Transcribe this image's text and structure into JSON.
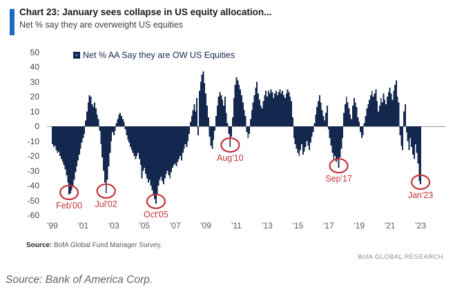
{
  "header": {
    "title": "Chart 23: January sees collapse in US equity allocation...",
    "subtitle": "Net % say they are overweight US equities"
  },
  "legend": {
    "label": "Net % AA Say they are OW US Equities"
  },
  "footer": {
    "source_label": "Source:",
    "source_text": " BofA Global Fund Manager Survey.",
    "brand": "BofA GLOBAL RESEARCH"
  },
  "caption": "Source: Bank of America Corp.",
  "colors": {
    "accent_blue": "#1e6bc2",
    "bar_navy": "#14274e",
    "legend_marker_inner": "#4a7ebb",
    "annotation_red": "#c4313b",
    "zero_line_gray": "#999999",
    "ytick_text": "#404040",
    "xtick_text": "#595959"
  },
  "chart_data": {
    "type": "bar",
    "title": "Net % AA Say they are OW US Equities",
    "xlabel": "",
    "ylabel": "Net % say they are overweight US equities",
    "x_start": "Jan 1999",
    "x_end": "Jan 2023",
    "x_frequency": "monthly",
    "ylim": [
      -60,
      50
    ],
    "grid": false,
    "legend_position": "top-left",
    "yticks": [
      "50",
      "40",
      "30",
      "20",
      "10",
      "0",
      "-10",
      "-20",
      "-30",
      "-40",
      "-50",
      "-60"
    ],
    "ytick_values": [
      50,
      40,
      30,
      20,
      10,
      0,
      -10,
      -20,
      -30,
      -40,
      -50,
      -60
    ],
    "xticks": [
      "'99",
      "'01",
      "'03",
      "'05",
      "'07",
      "'09",
      "'11",
      "'13",
      "'15",
      "'17",
      "'19",
      "'21",
      "'23"
    ],
    "values": [
      -12,
      -14,
      -13,
      -16,
      -18,
      -17,
      -20,
      -22,
      -24,
      -26,
      -29,
      -33,
      -38,
      -46,
      -45,
      -43,
      -40,
      -36,
      -31,
      -27,
      -23,
      -19,
      -15,
      -11,
      -8,
      -5,
      4,
      10,
      16,
      21,
      20,
      15,
      13,
      16,
      12,
      8,
      5,
      -3,
      -12,
      -21,
      -30,
      -38,
      -45,
      -36,
      -27,
      -18,
      -10,
      -4,
      -6,
      -3,
      2,
      5,
      8,
      9,
      7,
      5,
      3,
      -2,
      -6,
      -9,
      -11,
      -14,
      -16,
      -18,
      -20,
      -22,
      -20,
      -18,
      -22,
      -26,
      -35,
      -30,
      -28,
      -32,
      -35,
      -38,
      -36,
      -40,
      -43,
      -46,
      -49,
      -52,
      -46,
      -40,
      -36,
      -34,
      -37,
      -39,
      -35,
      -32,
      -30,
      -33,
      -35,
      -31,
      -28,
      -26,
      -25,
      -27,
      -24,
      -22,
      -20,
      -23,
      -18,
      -15,
      -12,
      -14,
      -10,
      -5,
      3,
      7,
      11,
      15,
      10,
      19,
      -6,
      24,
      30,
      35,
      37,
      29,
      22,
      14,
      6,
      -7,
      -13,
      -15,
      -9,
      -3,
      7,
      14,
      20,
      23,
      21,
      18,
      14,
      20,
      9,
      2,
      -5,
      -14,
      -7,
      6,
      19,
      28,
      33,
      31,
      28,
      25,
      21,
      16,
      11,
      7,
      -4,
      -8,
      -5,
      5,
      11,
      16,
      21,
      26,
      30,
      22,
      18,
      14,
      12,
      17,
      21,
      24,
      20,
      24,
      22,
      25,
      23,
      19,
      22,
      24,
      21,
      23,
      25,
      22,
      24,
      21,
      19,
      22,
      25,
      23,
      20,
      17,
      6,
      -8,
      -12,
      -15,
      -18,
      -20,
      -16,
      -12,
      -19,
      -17,
      -14,
      -10,
      -13,
      -16,
      -11,
      -7,
      -4,
      2,
      8,
      13,
      17,
      21,
      16,
      11,
      7,
      4,
      9,
      14,
      -2,
      -8,
      -13,
      -18,
      -22,
      -20,
      -24,
      -22,
      -28,
      -21,
      -15,
      -8,
      9,
      15,
      20,
      16,
      12,
      8,
      5,
      14,
      19,
      16,
      13,
      6,
      3,
      -4,
      -8,
      -6,
      2,
      7,
      12,
      15,
      18,
      21,
      24,
      20,
      22,
      25,
      17,
      10,
      14,
      19,
      16,
      22,
      18,
      15,
      20,
      23,
      26,
      22,
      18,
      24,
      28,
      31,
      20,
      16,
      -6,
      -13,
      -16,
      10,
      15,
      -4,
      -10,
      -16,
      -8,
      -14,
      -19,
      -22,
      -12,
      -18,
      -25,
      -37,
      -39
    ],
    "annotations": [
      {
        "label": "Feb'00",
        "month_index": 13,
        "value": -46
      },
      {
        "label": "Jul'02",
        "month_index": 42,
        "value": -45
      },
      {
        "label": "Oct'05",
        "month_index": 81,
        "value": -52
      },
      {
        "label": "Aug'10",
        "month_index": 139,
        "value": -14
      },
      {
        "label": "Sep'17",
        "month_index": 224,
        "value": -28
      },
      {
        "label": "Jan'23",
        "month_index": 288,
        "value": -39
      }
    ]
  }
}
